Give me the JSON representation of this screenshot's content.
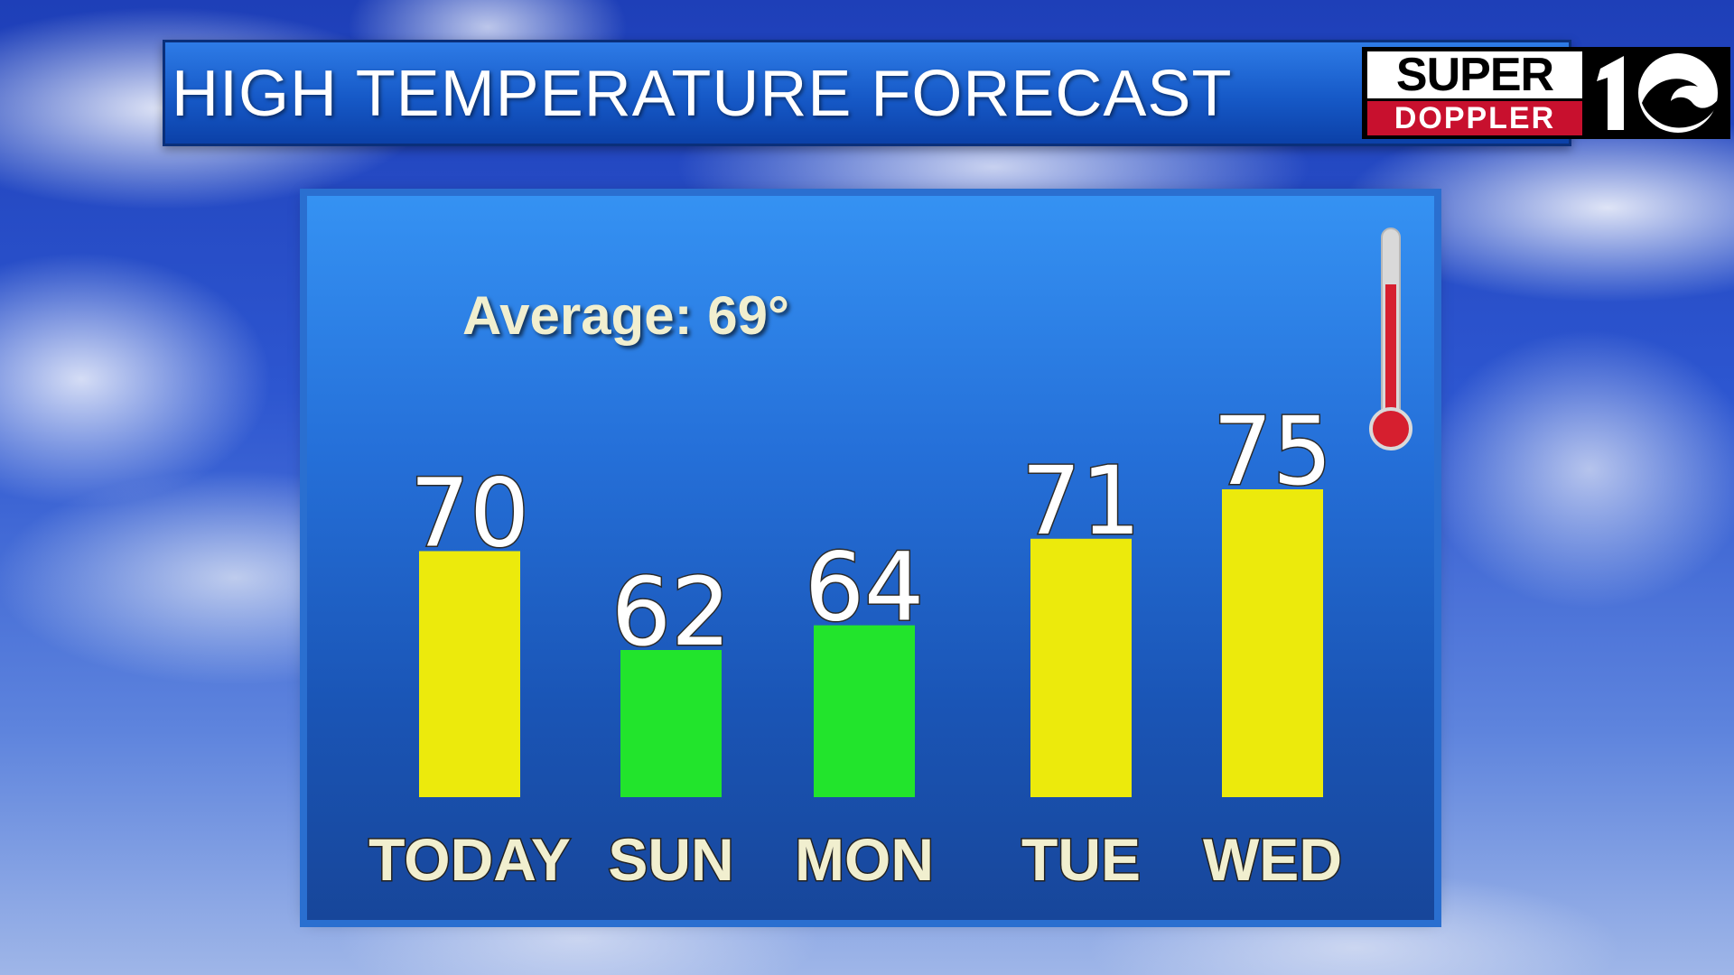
{
  "header": {
    "title": "HIGH TEMPERATURE FORECAST",
    "logo": {
      "line1": "SUPER",
      "line2": "DOPPLER",
      "mark": "10"
    }
  },
  "panel": {
    "average_label": "Average: 69°",
    "thermometer_icon": "thermometer-icon"
  },
  "colors": {
    "above_average": "#ecea0c",
    "below_average": "#22e42c",
    "logo_red": "#c8102e"
  },
  "chart_data": {
    "type": "bar",
    "categories": [
      "TODAY",
      "SUN",
      "MON",
      "TUE",
      "WED"
    ],
    "values": [
      70,
      62,
      64,
      71,
      75
    ],
    "labels": [
      "70",
      "62",
      "64",
      "71",
      "75"
    ],
    "average": 69,
    "title": "HIGH TEMPERATURE FORECAST",
    "xlabel": "",
    "ylabel": "",
    "grid": false,
    "legend": "none"
  }
}
